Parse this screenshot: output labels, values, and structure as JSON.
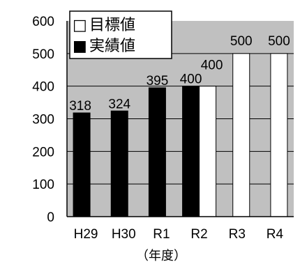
{
  "chart_data": {
    "type": "bar",
    "categories": [
      "H29",
      "H30",
      "R1",
      "R2",
      "R3",
      "R4"
    ],
    "series": [
      {
        "name": "実績値",
        "values": [
          318,
          324,
          395,
          400,
          null,
          null
        ],
        "color": "#000000"
      },
      {
        "name": "目標値",
        "values": [
          null,
          null,
          null,
          400,
          500,
          500
        ],
        "color": "#ffffff"
      }
    ],
    "legend_symbols": [
      "□",
      "■"
    ],
    "legend_names": [
      "目標値",
      "実績値"
    ],
    "data_labels": [
      "318",
      "324",
      "395",
      "400",
      "400",
      "500",
      "500"
    ],
    "yticks": [
      "0",
      "100",
      "200",
      "300",
      "400",
      "500",
      "600"
    ],
    "ylim": [
      0,
      600
    ],
    "xlabel": "（年度）",
    "title": "",
    "ylabel": "",
    "grid": "horizontal",
    "legend_position": "top-left",
    "plot_background": "#c0c0c0"
  }
}
